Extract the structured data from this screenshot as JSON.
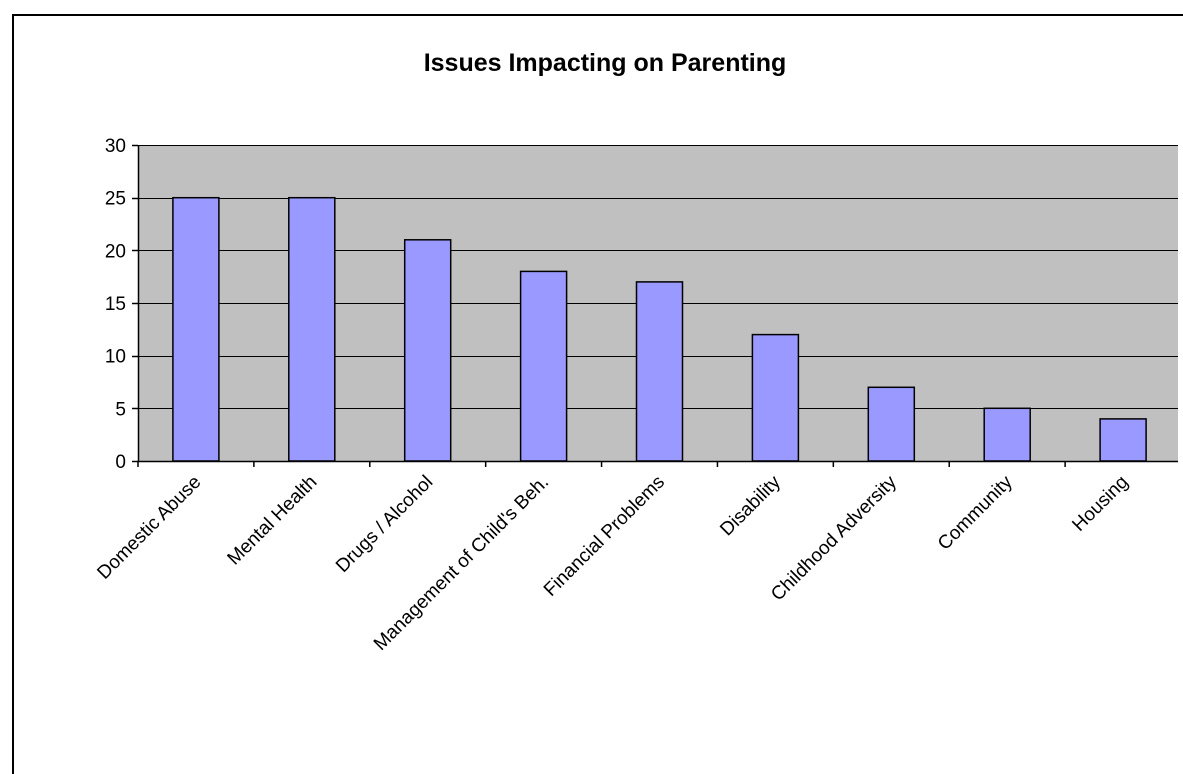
{
  "chart_data": {
    "type": "bar",
    "title": "Issues Impacting on Parenting",
    "xlabel": "",
    "ylabel": "",
    "categories": [
      "Domestic Abuse",
      "Mental Health",
      "Drugs / Alcohol",
      "Management of Child's Beh.",
      "Financial Problems",
      "Disability",
      "Childhood Adversity",
      "Community",
      "Housing"
    ],
    "values": [
      25,
      25,
      21,
      18,
      17,
      12,
      7,
      5,
      4
    ],
    "ylim": [
      0,
      30
    ],
    "yticks": [
      0,
      5,
      10,
      15,
      20,
      25,
      30
    ],
    "grid": true,
    "legend": "none",
    "colors": {
      "bar_fill": "#9999ff",
      "bar_stroke": "#000000",
      "plot_background": "#c0c0c0",
      "gridline": "#000000"
    }
  }
}
